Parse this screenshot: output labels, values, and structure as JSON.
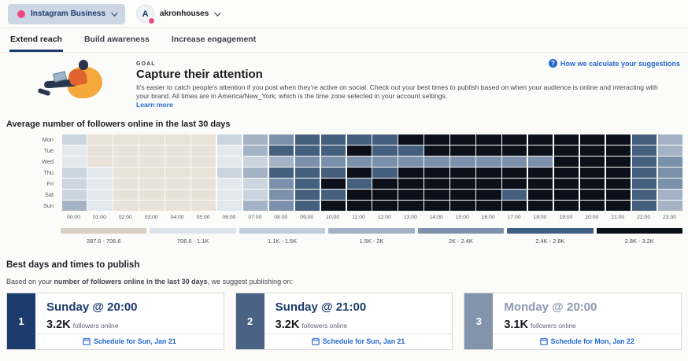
{
  "topbar": {
    "account_selector": {
      "label": "Instagram Business"
    },
    "profile": {
      "initial": "A",
      "name": "akronhouses"
    }
  },
  "tabs": [
    {
      "label": "Extend reach",
      "active": true
    },
    {
      "label": "Build awareness",
      "active": false
    },
    {
      "label": "Increase engagement",
      "active": false
    }
  ],
  "goal": {
    "eyebrow": "GOAL",
    "title": "Capture their attention",
    "description": "It's easier to catch people's attention if you post when they're active on social. Check out your best times to publish based on when your audience is online and interacting with your brand. All times are in America/New_York, which is the time zone selected in your account settings.",
    "learn_more": "Learn more",
    "help_link": "How we calculate your suggestions"
  },
  "heatmap": {
    "title": "Average number of followers online in the last 30 days",
    "days": [
      "Mon",
      "Tue",
      "Wed",
      "Thu",
      "Fri",
      "Sat",
      "Sun"
    ],
    "hours": [
      "00:00",
      "01:00",
      "02:00",
      "03:00",
      "04:00",
      "05:00",
      "06:00",
      "07:00",
      "08:00",
      "09:00",
      "10:00",
      "11:00",
      "12:00",
      "13:00",
      "14:00",
      "15:00",
      "16:00",
      "17:00",
      "18:00",
      "19:00",
      "20:00",
      "21:00",
      "22:00",
      "23:00"
    ],
    "palette": {
      "1": "#e9e2d9",
      "2": "#e3e8ee",
      "3": "#cbd5e0",
      "4": "#a4b2c6",
      "5": "#7b90aa",
      "6": "#45607f",
      "7": "#0b101b"
    },
    "grid": [
      [
        3,
        1,
        1,
        1,
        1,
        1,
        3,
        4,
        5,
        6,
        6,
        6,
        6,
        7,
        7,
        7,
        7,
        7,
        7,
        7,
        7,
        7,
        6,
        4
      ],
      [
        2,
        1,
        1,
        1,
        1,
        1,
        2,
        4,
        6,
        6,
        6,
        7,
        6,
        6,
        7,
        7,
        7,
        7,
        7,
        7,
        7,
        7,
        6,
        4
      ],
      [
        2,
        1,
        1,
        1,
        1,
        1,
        2,
        3,
        4,
        5,
        5,
        5,
        5,
        5,
        5,
        5,
        5,
        5,
        5,
        7,
        7,
        7,
        6,
        5
      ],
      [
        3,
        2,
        1,
        1,
        1,
        1,
        3,
        4,
        6,
        6,
        6,
        7,
        6,
        7,
        7,
        7,
        7,
        7,
        7,
        7,
        7,
        7,
        6,
        5
      ],
      [
        3,
        2,
        1,
        1,
        1,
        1,
        2,
        3,
        5,
        6,
        7,
        6,
        7,
        7,
        7,
        7,
        7,
        7,
        7,
        7,
        7,
        7,
        6,
        5
      ],
      [
        3,
        2,
        1,
        1,
        1,
        1,
        2,
        3,
        5,
        6,
        6,
        7,
        7,
        7,
        7,
        7,
        7,
        6,
        7,
        7,
        7,
        7,
        6,
        4
      ],
      [
        4,
        2,
        1,
        1,
        1,
        1,
        2,
        4,
        5,
        6,
        7,
        7,
        7,
        7,
        7,
        7,
        7,
        7,
        7,
        7,
        7,
        7,
        6,
        4
      ]
    ],
    "legend": [
      {
        "label": "287.6 - 706.6",
        "color": "#d8cec2"
      },
      {
        "label": "706.6 - 1.1K",
        "color": "#dde3ea"
      },
      {
        "label": "1.1K - 1.5K",
        "color": "#c2ccd9"
      },
      {
        "label": "1.5K - 2K",
        "color": "#a2b1c5"
      },
      {
        "label": "2K - 2.4K",
        "color": "#7e92ac"
      },
      {
        "label": "2.4K - 2.8K",
        "color": "#3f5d85"
      },
      {
        "label": "2.8K - 3.2K",
        "color": "#0a0e16"
      }
    ]
  },
  "best_times": {
    "title": "Best days and times to publish",
    "intro_prefix": "Based on your ",
    "intro_bold": "number of followers online in the last 30 days",
    "intro_suffix": ", we suggest publishing on:",
    "cards": [
      {
        "rank": "1",
        "title": "Sunday @ 20:00",
        "value": "3.2K",
        "value_suffix": "followers online",
        "cta": "Schedule for Sun, Jan 21",
        "panel_color": "#1d3c6e",
        "title_color": "#1d3c6e"
      },
      {
        "rank": "2",
        "title": "Sunday @ 21:00",
        "value": "3.2K",
        "value_suffix": "followers online",
        "cta": "Schedule for Sun, Jan 21",
        "panel_color": "#4a6385",
        "title_color": "#1d3c6e"
      },
      {
        "rank": "3",
        "title": "Monday @ 20:00",
        "value": "3.1K",
        "value_suffix": "followers online",
        "cta": "Schedule for Mon, Jan 22",
        "panel_color": "#8294ac",
        "title_color": "#8b9ab0"
      }
    ]
  },
  "colors": {
    "accent_pink": "#e94b80",
    "link_blue": "#2569cf",
    "navy": "#1d3c6e"
  }
}
